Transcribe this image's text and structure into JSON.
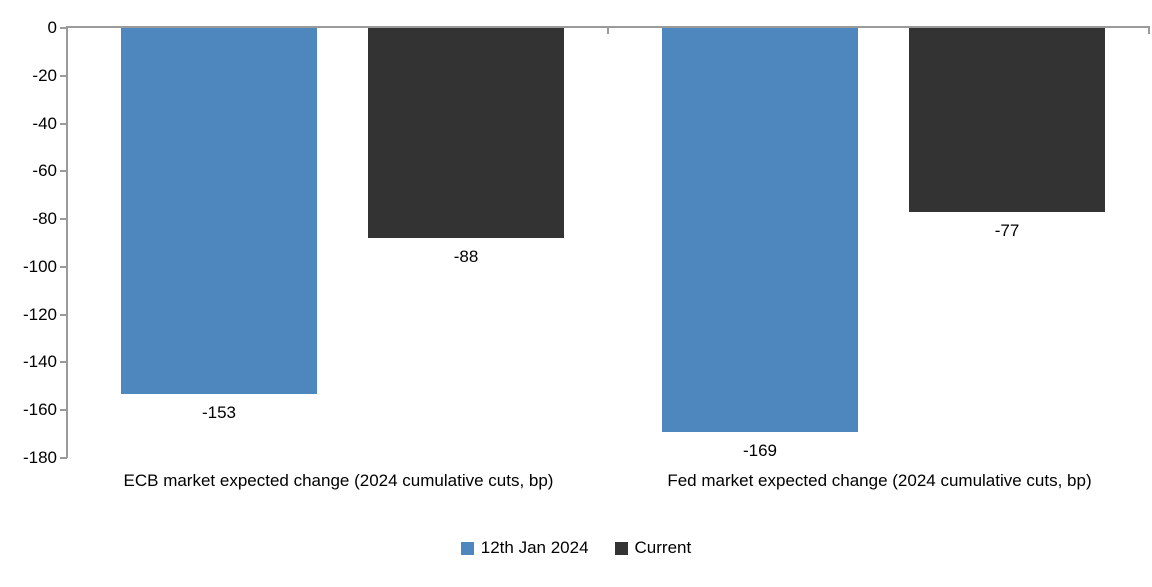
{
  "chart_data": {
    "type": "bar",
    "title": "",
    "xlabel": "",
    "ylabel": "",
    "categories": [
      "ECB market expected change (2024 cumulative cuts, bp)",
      "Fed market expected change (2024 cumulative cuts, bp)"
    ],
    "series": [
      {
        "name": "12th Jan 2024",
        "color": "#4E87BE",
        "values": [
          -153,
          -169
        ]
      },
      {
        "name": "Current",
        "color": "#333333",
        "values": [
          -88,
          -77
        ]
      }
    ],
    "data_labels": [
      [
        "-153",
        "-169"
      ],
      [
        "-88",
        "-77"
      ]
    ],
    "ylim": [
      -180,
      0
    ],
    "yticks": [
      0,
      -20,
      -40,
      -60,
      -80,
      -100,
      -120,
      -140,
      -160,
      -180
    ],
    "grid": false,
    "legend_position": "bottom",
    "axis_color": "#9A9A9A",
    "text_color": "#000000",
    "background": "#FFFFFF"
  }
}
